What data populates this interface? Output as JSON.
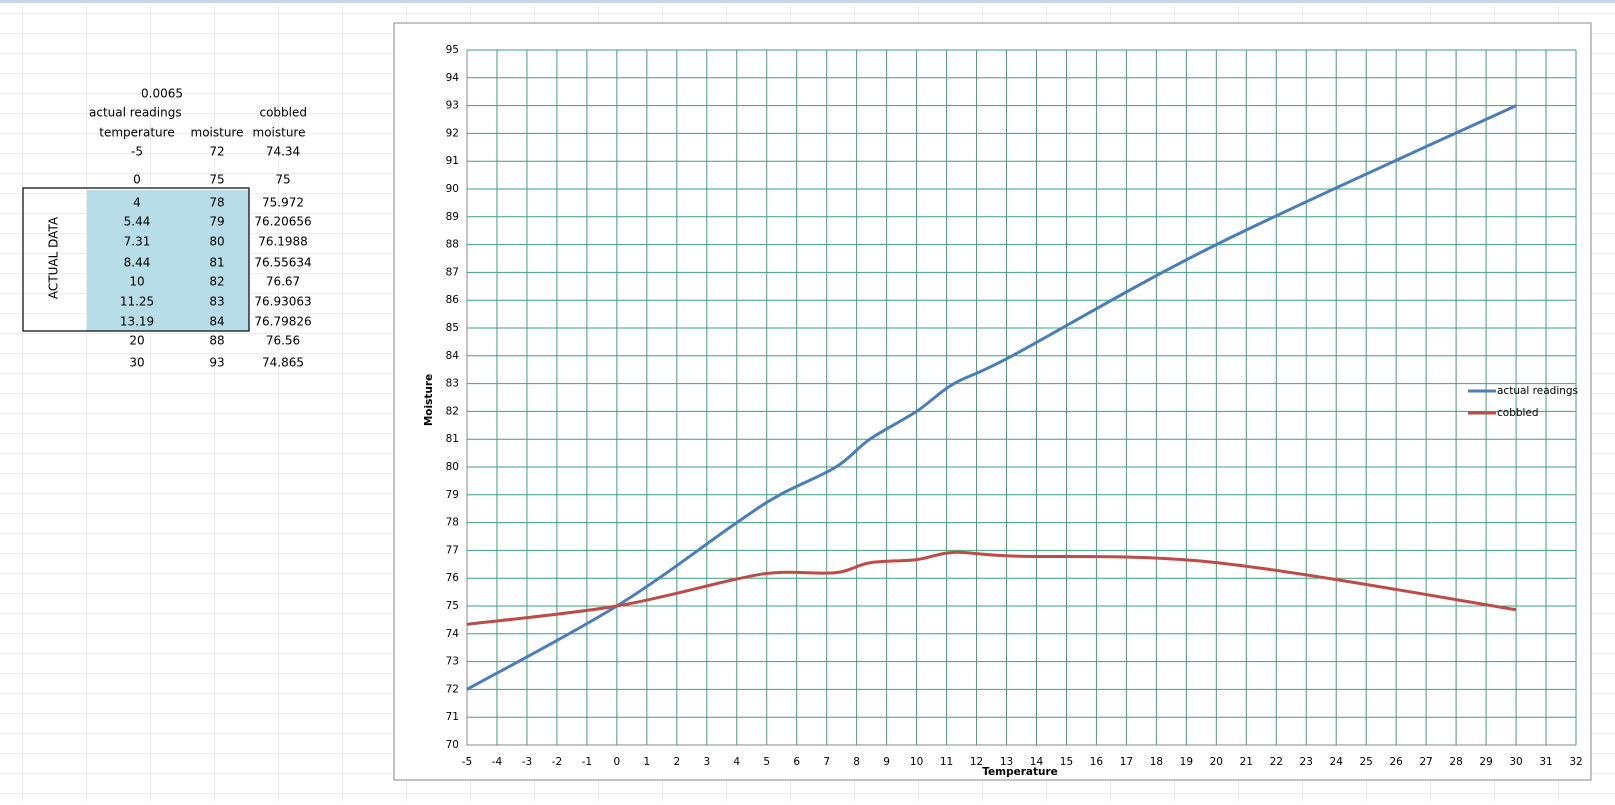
{
  "table": {
    "constant": "0.0065",
    "group_labels": [
      "actual readings",
      "cobbled"
    ],
    "columns": [
      "temperature",
      "moisture",
      "moisture"
    ],
    "side_label": "ACTUAL DATA",
    "rows": [
      [
        "-5",
        "72",
        "74.34"
      ],
      [
        "0",
        "75",
        "75"
      ],
      [
        "4",
        "78",
        "75.972"
      ],
      [
        "5.44",
        "79",
        "76.20656"
      ],
      [
        "7.31",
        "80",
        "76.1988"
      ],
      [
        "8.44",
        "81",
        "76.55634"
      ],
      [
        "10",
        "82",
        "76.67"
      ],
      [
        "11.25",
        "83",
        "76.93063"
      ],
      [
        "13.19",
        "84",
        "76.79826"
      ],
      [
        "20",
        "88",
        "76.56"
      ],
      [
        "30",
        "93",
        "74.865"
      ]
    ]
  },
  "chart_data": {
    "type": "line",
    "xlabel": "Temperature",
    "ylabel": "Moisture",
    "x": [
      -5,
      0,
      4,
      5.44,
      7.31,
      8.44,
      10,
      11.25,
      13.19,
      20,
      30
    ],
    "series": [
      {
        "name": "actual readings",
        "color": "#4a7ebb",
        "values": [
          72,
          75,
          78,
          79,
          80,
          81,
          82,
          83,
          84,
          88,
          93
        ]
      },
      {
        "name": "cobbled",
        "color": "#be4b48",
        "values": [
          74.34,
          75,
          75.972,
          76.20656,
          76.1988,
          76.55634,
          76.67,
          76.93063,
          76.79826,
          76.56,
          74.865
        ]
      }
    ],
    "xlim": [
      -5,
      32
    ],
    "ylim": [
      70,
      95
    ],
    "xticks": [
      -5,
      -4,
      -3,
      -2,
      -1,
      0,
      1,
      2,
      3,
      4,
      5,
      6,
      7,
      8,
      9,
      10,
      11,
      12,
      13,
      14,
      15,
      16,
      17,
      18,
      19,
      20,
      21,
      22,
      23,
      24,
      25,
      26,
      27,
      28,
      29,
      30,
      31,
      32
    ],
    "yticks": [
      70,
      71,
      72,
      73,
      74,
      75,
      76,
      77,
      78,
      79,
      80,
      81,
      82,
      83,
      84,
      85,
      86,
      87,
      88,
      89,
      90,
      91,
      92,
      93,
      94,
      95
    ],
    "grid": true,
    "grid_color": "#3f9f7f",
    "smooth": true,
    "legend": "right"
  }
}
